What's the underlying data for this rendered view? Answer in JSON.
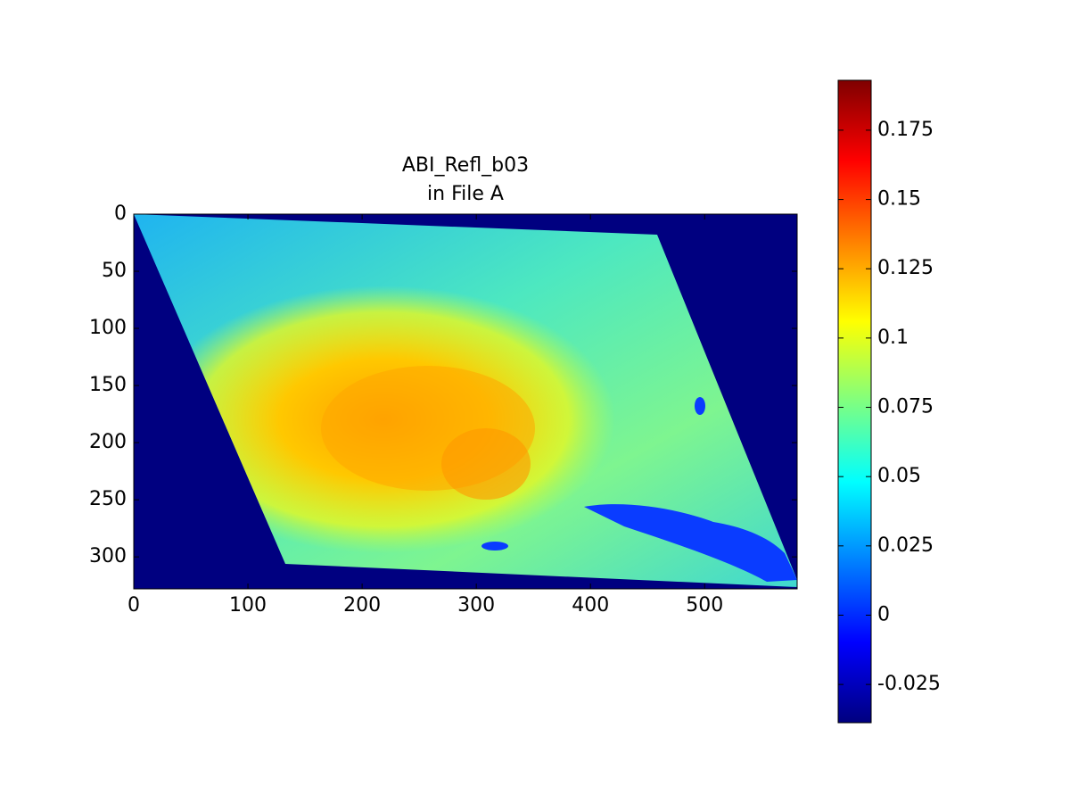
{
  "chart_data": {
    "type": "heatmap",
    "title_lines": [
      "ABI_Refl_b03",
      "in File A"
    ],
    "xlim": [
      0,
      581
    ],
    "ylim": [
      328,
      0
    ],
    "xticks": [
      0,
      100,
      200,
      300,
      400,
      500
    ],
    "yticks": [
      0,
      50,
      100,
      150,
      200,
      250,
      300
    ],
    "colormap": "jet",
    "clim": [
      -0.0388,
      0.193
    ],
    "cticks": [
      -0.025,
      0,
      0.025,
      0.05,
      0.075,
      0.1,
      0.125,
      0.15,
      0.175
    ]
  }
}
